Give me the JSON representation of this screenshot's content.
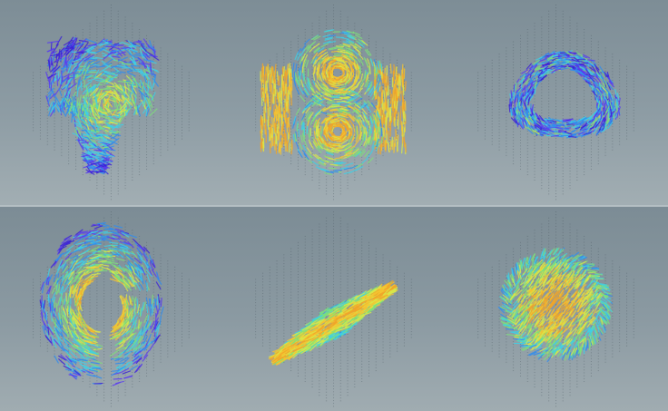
{
  "scene": {
    "description_type": "3d-vector-field-renders",
    "background_top": "#7d8d96",
    "background_bottom": "#a2aeb3",
    "grid_dot_color": "#4b5860",
    "colormap": [
      "#3a1fd8",
      "#5a3cf0",
      "#2f8df0",
      "#3ed0e6",
      "#7ee07a",
      "#d8e84a",
      "#f5c531",
      "#f0a62a"
    ],
    "panels": [
      {
        "id": "p1",
        "shape": "swirl-column",
        "hot_ratio": 0.25
      },
      {
        "id": "p2",
        "shape": "twin-vortex",
        "hot_ratio": 0.65
      },
      {
        "id": "p3",
        "shape": "ring",
        "hot_ratio": 0.15
      },
      {
        "id": "p4",
        "shape": "split-shell",
        "hot_ratio": 0.35
      },
      {
        "id": "p5",
        "shape": "diagonal-sheet",
        "hot_ratio": 0.55
      },
      {
        "id": "p6",
        "shape": "sphere",
        "hot_ratio": 0.8
      }
    ]
  }
}
